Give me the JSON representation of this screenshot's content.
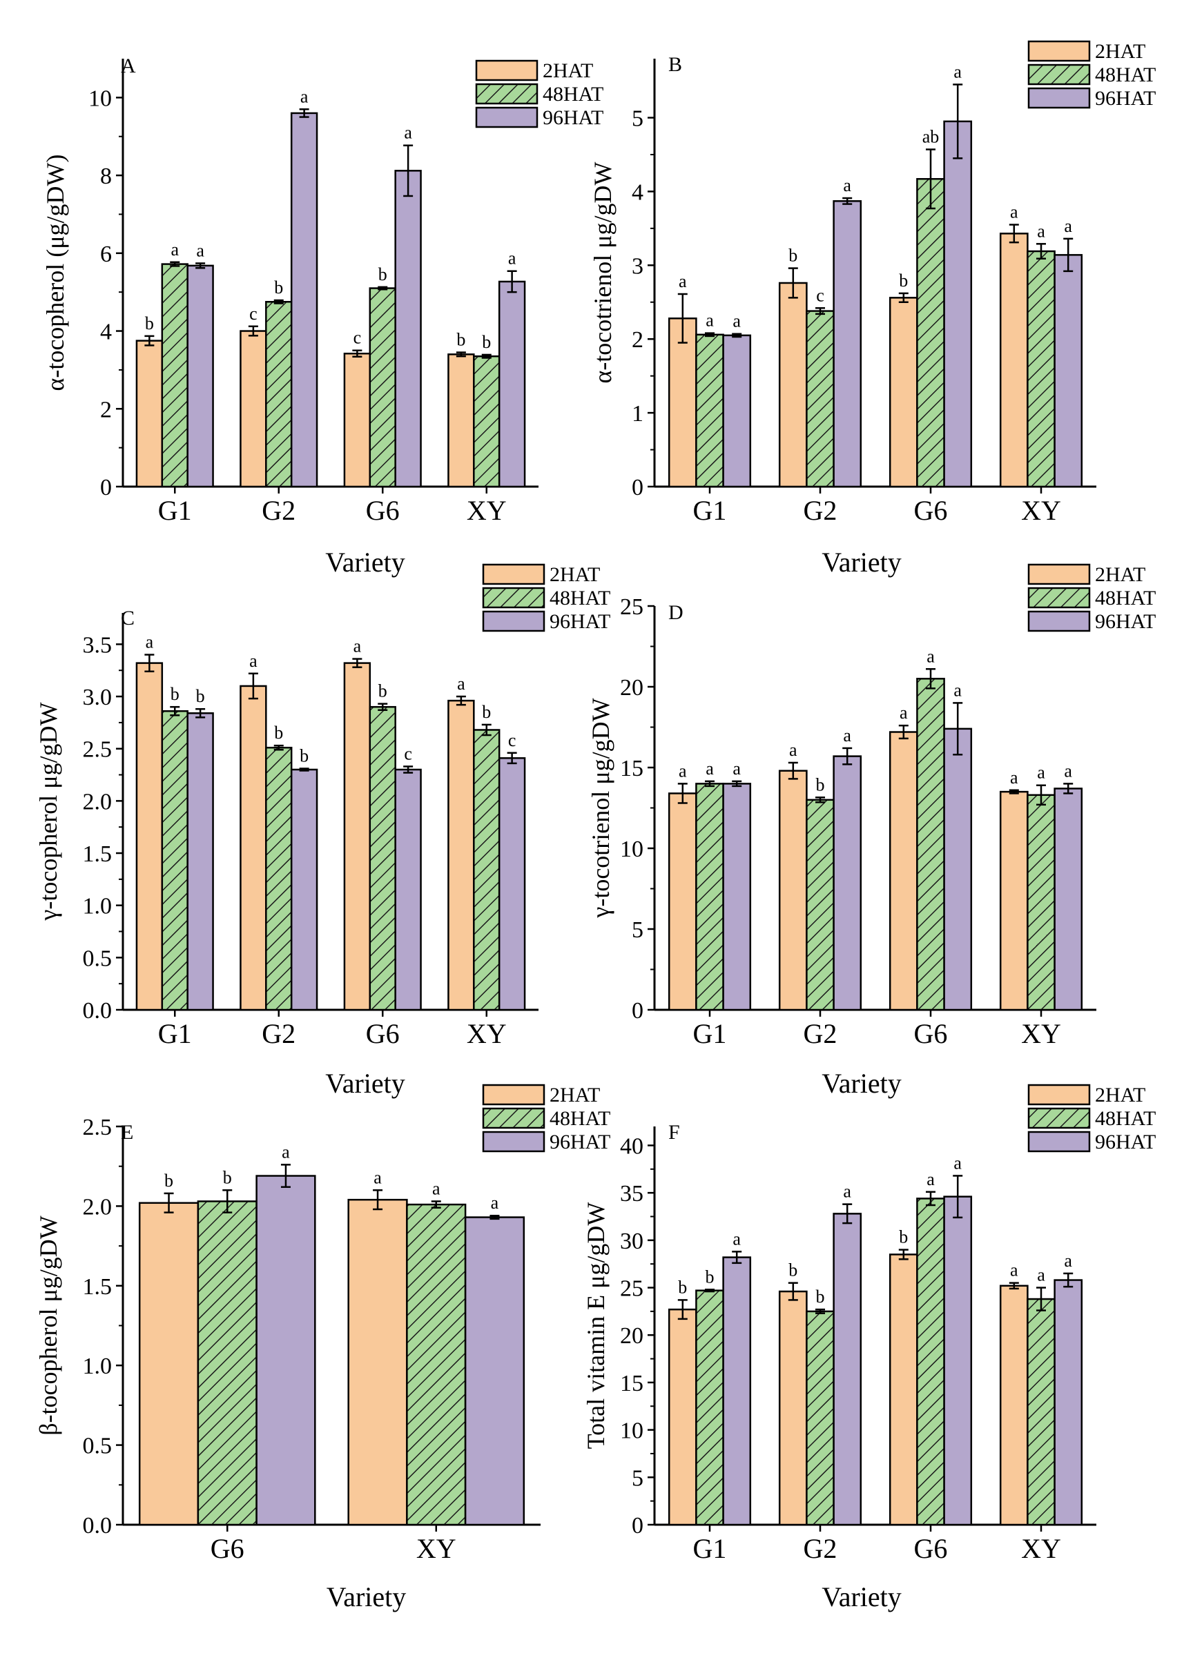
{
  "figure": {
    "legend_order": [
      "2HAT",
      "48HAT",
      "96HAT"
    ],
    "series_colors": {
      "2HAT": "#f9c99a",
      "48HAT": "#a8d89a",
      "96HAT": "#b4a7cc"
    },
    "hatch_color": "#1a1a1a",
    "outline_color": "#000000"
  },
  "chart_data": [
    {
      "panel": "A",
      "type": "bar",
      "title": "",
      "xlabel": "Variety",
      "ylabel": "α-tocopherol (μg/gDW)",
      "ylim": [
        0,
        11
      ],
      "yticks": [
        0,
        2,
        4,
        6,
        8,
        10
      ],
      "ytick_labels": [
        "0",
        "2",
        "4",
        "6",
        "8",
        "10"
      ],
      "categories": [
        "G1",
        "G2",
        "G6",
        "XY"
      ],
      "legend": "top-right",
      "series": [
        {
          "name": "2HAT",
          "values": [
            3.75,
            4.0,
            3.42,
            3.4
          ],
          "errors": [
            0.12,
            0.12,
            0.08,
            0.05
          ],
          "letters": [
            "b",
            "c",
            "c",
            "b"
          ]
        },
        {
          "name": "48HAT",
          "values": [
            5.72,
            4.75,
            5.1,
            3.35
          ],
          "errors": [
            0.05,
            0.04,
            0.03,
            0.04
          ],
          "letters": [
            "a",
            "b",
            "b",
            "b"
          ]
        },
        {
          "name": "96HAT",
          "values": [
            5.68,
            9.6,
            8.12,
            5.27
          ],
          "errors": [
            0.06,
            0.1,
            0.65,
            0.27
          ],
          "letters": [
            "a",
            "a",
            "a",
            "a"
          ]
        }
      ]
    },
    {
      "panel": "B",
      "type": "bar",
      "title": "",
      "xlabel": "Variety",
      "ylabel": "α-tocotrienol μg/gDW",
      "ylim": [
        0,
        5.8
      ],
      "yticks": [
        0,
        1,
        2,
        3,
        4,
        5
      ],
      "ytick_labels": [
        "0",
        "1",
        "2",
        "3",
        "4",
        "5"
      ],
      "categories": [
        "G1",
        "G2",
        "G6",
        "XY"
      ],
      "legend": "top-right",
      "series": [
        {
          "name": "2HAT",
          "values": [
            2.28,
            2.76,
            2.56,
            3.43
          ],
          "errors": [
            0.33,
            0.2,
            0.06,
            0.12
          ],
          "letters": [
            "a",
            "b",
            "b",
            "a"
          ]
        },
        {
          "name": "48HAT",
          "values": [
            2.06,
            2.38,
            4.17,
            3.19
          ],
          "errors": [
            0.02,
            0.04,
            0.4,
            0.1
          ],
          "letters": [
            "a",
            "c",
            "ab",
            "a"
          ]
        },
        {
          "name": "96HAT",
          "values": [
            2.05,
            3.87,
            4.95,
            3.14
          ],
          "errors": [
            0.02,
            0.04,
            0.5,
            0.22
          ],
          "letters": [
            "a",
            "a",
            "a",
            "a"
          ]
        }
      ]
    },
    {
      "panel": "C",
      "type": "bar",
      "title": "",
      "xlabel": "Variety",
      "ylabel": "γ-tocopherol μg/gDW",
      "ylim": [
        0,
        3.8
      ],
      "yticks": [
        0,
        0.5,
        1,
        1.5,
        2,
        2.5,
        3,
        3.5
      ],
      "ytick_labels": [
        "0.0",
        "0.5",
        "1.0",
        "1.5",
        "2.0",
        "2.5",
        "3.0",
        "3.5"
      ],
      "categories": [
        "G1",
        "G2",
        "G6",
        "XY"
      ],
      "legend": "top-right",
      "series": [
        {
          "name": "2HAT",
          "values": [
            3.32,
            3.1,
            3.32,
            2.96
          ],
          "errors": [
            0.08,
            0.12,
            0.04,
            0.04
          ],
          "letters": [
            "a",
            "a",
            "a",
            "a"
          ]
        },
        {
          "name": "48HAT",
          "values": [
            2.86,
            2.51,
            2.9,
            2.68
          ],
          "errors": [
            0.04,
            0.02,
            0.03,
            0.05
          ],
          "letters": [
            "b",
            "b",
            "b",
            "b"
          ]
        },
        {
          "name": "96HAT",
          "values": [
            2.84,
            2.3,
            2.3,
            2.41
          ],
          "errors": [
            0.04,
            0.01,
            0.03,
            0.05
          ],
          "letters": [
            "b",
            "b",
            "c",
            "c"
          ]
        }
      ]
    },
    {
      "panel": "D",
      "type": "bar",
      "title": "",
      "xlabel": "Variety",
      "ylabel": "γ-tocotrienol μg/gDW",
      "ylim": [
        0,
        25
      ],
      "yticks": [
        0,
        5,
        10,
        15,
        20,
        25
      ],
      "ytick_labels": [
        "0",
        "5",
        "10",
        "15",
        "20",
        "25"
      ],
      "categories": [
        "G1",
        "G2",
        "G6",
        "XY"
      ],
      "legend": "top-right",
      "series": [
        {
          "name": "2HAT",
          "values": [
            13.4,
            14.8,
            17.2,
            13.5
          ],
          "errors": [
            0.6,
            0.5,
            0.4,
            0.1
          ],
          "letters": [
            "a",
            "a",
            "a",
            "a"
          ]
        },
        {
          "name": "48HAT",
          "values": [
            14.0,
            13.0,
            20.5,
            13.3
          ],
          "errors": [
            0.15,
            0.15,
            0.6,
            0.6
          ],
          "letters": [
            "a",
            "b",
            "a",
            "a"
          ]
        },
        {
          "name": "96HAT",
          "values": [
            14.0,
            15.7,
            17.4,
            13.7
          ],
          "errors": [
            0.15,
            0.5,
            1.6,
            0.3
          ],
          "letters": [
            "a",
            "a",
            "a",
            "a"
          ]
        }
      ]
    },
    {
      "panel": "E",
      "type": "bar",
      "title": "",
      "xlabel": "Variety",
      "ylabel": "β-tocopherol μg/gDW",
      "ylim": [
        0,
        2.5
      ],
      "yticks": [
        0,
        0.5,
        1,
        1.5,
        2,
        2.5
      ],
      "ytick_labels": [
        "0.0",
        "0.5",
        "1.0",
        "1.5",
        "2.0",
        "2.5"
      ],
      "categories": [
        "G6",
        "XY"
      ],
      "legend": "top-right",
      "series": [
        {
          "name": "2HAT",
          "values": [
            2.02,
            2.04
          ],
          "errors": [
            0.06,
            0.06
          ],
          "letters": [
            "b",
            "a"
          ]
        },
        {
          "name": "48HAT",
          "values": [
            2.03,
            2.01
          ],
          "errors": [
            0.07,
            0.02
          ],
          "letters": [
            "b",
            "a"
          ]
        },
        {
          "name": "96HAT",
          "values": [
            2.19,
            1.93
          ],
          "errors": [
            0.07,
            0.01
          ],
          "letters": [
            "a",
            "a"
          ]
        }
      ]
    },
    {
      "panel": "F",
      "type": "bar",
      "title": "",
      "xlabel": "Variety",
      "ylabel": "Total vitamin E μg/gDW",
      "ylim": [
        0,
        42
      ],
      "yticks": [
        0,
        5,
        10,
        15,
        20,
        25,
        30,
        35,
        40
      ],
      "ytick_labels": [
        "0",
        "5",
        "10",
        "15",
        "20",
        "25",
        "30",
        "35",
        "40"
      ],
      "categories": [
        "G1",
        "G2",
        "G6",
        "XY"
      ],
      "legend": "top-right",
      "series": [
        {
          "name": "2HAT",
          "values": [
            22.7,
            24.6,
            28.5,
            25.2
          ],
          "errors": [
            1.0,
            0.9,
            0.5,
            0.3
          ],
          "letters": [
            "b",
            "b",
            "b",
            "a"
          ]
        },
        {
          "name": "48HAT",
          "values": [
            24.7,
            22.5,
            34.4,
            23.8
          ],
          "errors": [
            0.1,
            0.2,
            0.7,
            1.2
          ],
          "letters": [
            "b",
            "b",
            "a",
            "a"
          ]
        },
        {
          "name": "96HAT",
          "values": [
            28.2,
            32.8,
            34.6,
            25.8
          ],
          "errors": [
            0.6,
            1.0,
            2.2,
            0.7
          ],
          "letters": [
            "a",
            "a",
            "a",
            "a"
          ]
        }
      ]
    }
  ]
}
